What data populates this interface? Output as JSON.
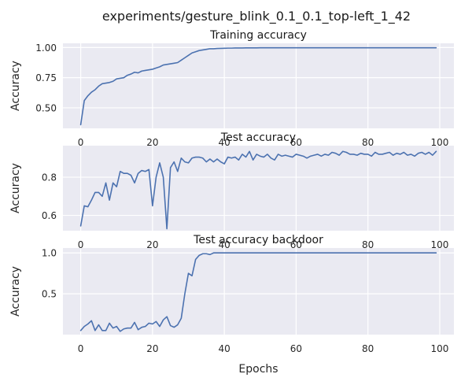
{
  "figure_title": "experiments/gesture_blink_0.1_0.1_top-left_1_42",
  "colors": {
    "background": "#eaeaf2",
    "grid": "#ffffff",
    "series": "#4c72b0"
  },
  "chart_data": [
    {
      "type": "line",
      "title": "Training accuracy",
      "xlabel": "",
      "ylabel": "Accuracy",
      "xlim": [
        -4.95,
        103.95
      ],
      "ylim": [
        0.33,
        1.035
      ],
      "xticks": [
        0,
        20,
        40,
        60,
        80,
        100
      ],
      "xtick_labels": [
        "0",
        "20",
        "40",
        "60",
        "80",
        "100"
      ],
      "yticks": [
        0.5,
        0.75,
        1.0
      ],
      "ytick_labels": [
        "0.50",
        "0.75",
        "1.00"
      ],
      "grid": true,
      "x": [
        0,
        1,
        2,
        3,
        4,
        5,
        6,
        7,
        8,
        9,
        10,
        11,
        12,
        13,
        14,
        15,
        16,
        17,
        18,
        19,
        20,
        21,
        22,
        23,
        24,
        25,
        26,
        27,
        28,
        29,
        30,
        31,
        32,
        33,
        34,
        35,
        36,
        37,
        38,
        39,
        40,
        41,
        42,
        43,
        44,
        45,
        46,
        47,
        48,
        49,
        50,
        51,
        52,
        53,
        54,
        55,
        56,
        57,
        58,
        59,
        60,
        61,
        62,
        63,
        64,
        65,
        66,
        67,
        68,
        69,
        70,
        71,
        72,
        73,
        74,
        75,
        76,
        77,
        78,
        79,
        80,
        81,
        82,
        83,
        84,
        85,
        86,
        87,
        88,
        89,
        90,
        91,
        92,
        93,
        94,
        95,
        96,
        97,
        98,
        99
      ],
      "y": [
        0.36,
        0.56,
        0.6,
        0.63,
        0.65,
        0.68,
        0.7,
        0.705,
        0.71,
        0.72,
        0.74,
        0.745,
        0.75,
        0.77,
        0.78,
        0.795,
        0.79,
        0.805,
        0.81,
        0.815,
        0.82,
        0.83,
        0.84,
        0.855,
        0.86,
        0.865,
        0.87,
        0.875,
        0.895,
        0.915,
        0.935,
        0.955,
        0.965,
        0.975,
        0.98,
        0.985,
        0.99,
        0.99,
        0.992,
        0.993,
        0.994,
        0.995,
        0.995,
        0.996,
        0.996,
        0.996,
        0.997,
        0.997,
        0.997,
        0.997,
        0.998,
        0.998,
        0.998,
        0.998,
        0.998,
        0.998,
        0.998,
        0.998,
        0.998,
        0.998,
        0.998,
        0.998,
        0.998,
        0.998,
        0.998,
        0.998,
        0.998,
        0.998,
        0.998,
        0.998,
        0.998,
        0.998,
        0.998,
        0.998,
        0.998,
        0.998,
        0.998,
        0.998,
        0.998,
        0.998,
        0.998,
        0.998,
        0.998,
        0.998,
        0.998,
        0.998,
        0.998,
        0.998,
        0.998,
        0.998,
        0.998,
        0.998,
        0.998,
        0.998,
        0.998,
        0.998,
        0.998,
        0.998,
        0.998,
        0.998
      ]
    },
    {
      "type": "line",
      "title": "Test accuracy",
      "xlabel": "",
      "ylabel": "Accuracy",
      "xlim": [
        -4.95,
        103.95
      ],
      "ylim": [
        0.52,
        0.965
      ],
      "xticks": [
        0,
        20,
        40,
        60,
        80,
        100
      ],
      "xtick_labels": [
        "0",
        "20",
        "40",
        "60",
        "80",
        "100"
      ],
      "yticks": [
        0.6,
        0.8
      ],
      "ytick_labels": [
        "0.6",
        "0.8"
      ],
      "grid": true,
      "x": [
        0,
        1,
        2,
        3,
        4,
        5,
        6,
        7,
        8,
        9,
        10,
        11,
        12,
        13,
        14,
        15,
        16,
        17,
        18,
        19,
        20,
        21,
        22,
        23,
        24,
        25,
        26,
        27,
        28,
        29,
        30,
        31,
        32,
        33,
        34,
        35,
        36,
        37,
        38,
        39,
        40,
        41,
        42,
        43,
        44,
        45,
        46,
        47,
        48,
        49,
        50,
        51,
        52,
        53,
        54,
        55,
        56,
        57,
        58,
        59,
        60,
        61,
        62,
        63,
        64,
        65,
        66,
        67,
        68,
        69,
        70,
        71,
        72,
        73,
        74,
        75,
        76,
        77,
        78,
        79,
        80,
        81,
        82,
        83,
        84,
        85,
        86,
        87,
        88,
        89,
        90,
        91,
        92,
        93,
        94,
        95,
        96,
        97,
        98,
        99
      ],
      "y": [
        0.545,
        0.65,
        0.645,
        0.68,
        0.72,
        0.72,
        0.7,
        0.77,
        0.68,
        0.77,
        0.75,
        0.83,
        0.82,
        0.82,
        0.81,
        0.77,
        0.82,
        0.835,
        0.83,
        0.84,
        0.65,
        0.8,
        0.875,
        0.8,
        0.53,
        0.85,
        0.88,
        0.83,
        0.9,
        0.88,
        0.875,
        0.9,
        0.905,
        0.905,
        0.9,
        0.88,
        0.895,
        0.88,
        0.895,
        0.88,
        0.87,
        0.905,
        0.9,
        0.905,
        0.89,
        0.92,
        0.905,
        0.935,
        0.89,
        0.92,
        0.91,
        0.905,
        0.92,
        0.9,
        0.89,
        0.92,
        0.91,
        0.915,
        0.91,
        0.905,
        0.92,
        0.915,
        0.91,
        0.9,
        0.91,
        0.915,
        0.92,
        0.91,
        0.92,
        0.915,
        0.93,
        0.925,
        0.915,
        0.935,
        0.93,
        0.92,
        0.92,
        0.915,
        0.925,
        0.92,
        0.92,
        0.91,
        0.93,
        0.92,
        0.92,
        0.925,
        0.93,
        0.915,
        0.925,
        0.92,
        0.93,
        0.915,
        0.92,
        0.91,
        0.925,
        0.93,
        0.92,
        0.93,
        0.915,
        0.935
      ]
    },
    {
      "type": "line",
      "title": "Test accuracy backdoor",
      "xlabel": "Epochs",
      "ylabel": "Accuracy",
      "xlim": [
        -4.95,
        103.95
      ],
      "ylim": [
        0.0,
        1.06
      ],
      "xticks": [
        0,
        20,
        40,
        60,
        80,
        100
      ],
      "xtick_labels": [
        "0",
        "20",
        "40",
        "60",
        "80",
        "100"
      ],
      "yticks": [
        0.5,
        1.0
      ],
      "ytick_labels": [
        "0.5",
        "1.0"
      ],
      "grid": true,
      "x": [
        0,
        1,
        2,
        3,
        4,
        5,
        6,
        7,
        8,
        9,
        10,
        11,
        12,
        13,
        14,
        15,
        16,
        17,
        18,
        19,
        20,
        21,
        22,
        23,
        24,
        25,
        26,
        27,
        28,
        29,
        30,
        31,
        32,
        33,
        34,
        35,
        36,
        37,
        38,
        39,
        40,
        41,
        42,
        43,
        44,
        45,
        46,
        47,
        48,
        49,
        50,
        51,
        52,
        53,
        54,
        55,
        56,
        57,
        58,
        59,
        60,
        61,
        62,
        63,
        64,
        65,
        66,
        67,
        68,
        69,
        70,
        71,
        72,
        73,
        74,
        75,
        76,
        77,
        78,
        79,
        80,
        81,
        82,
        83,
        84,
        85,
        86,
        87,
        88,
        89,
        90,
        91,
        92,
        93,
        94,
        95,
        96,
        97,
        98,
        99
      ],
      "y": [
        0.05,
        0.1,
        0.13,
        0.17,
        0.05,
        0.12,
        0.05,
        0.05,
        0.14,
        0.08,
        0.1,
        0.04,
        0.07,
        0.08,
        0.08,
        0.15,
        0.06,
        0.09,
        0.1,
        0.14,
        0.13,
        0.16,
        0.1,
        0.18,
        0.22,
        0.11,
        0.09,
        0.12,
        0.2,
        0.5,
        0.75,
        0.72,
        0.92,
        0.97,
        0.99,
        0.99,
        0.98,
        1.0,
        1.0,
        1.0,
        1.0,
        1.0,
        1.0,
        1.0,
        1.0,
        1.0,
        1.0,
        1.0,
        1.0,
        1.0,
        1.0,
        1.0,
        1.0,
        1.0,
        1.0,
        1.0,
        1.0,
        1.0,
        1.0,
        1.0,
        1.0,
        1.0,
        1.0,
        1.0,
        1.0,
        1.0,
        1.0,
        1.0,
        1.0,
        1.0,
        1.0,
        1.0,
        1.0,
        1.0,
        1.0,
        1.0,
        1.0,
        1.0,
        1.0,
        1.0,
        1.0,
        1.0,
        1.0,
        1.0,
        1.0,
        1.0,
        1.0,
        1.0,
        1.0,
        1.0,
        1.0,
        1.0,
        1.0,
        1.0,
        1.0,
        1.0,
        1.0,
        1.0,
        1.0,
        1.0
      ]
    }
  ]
}
